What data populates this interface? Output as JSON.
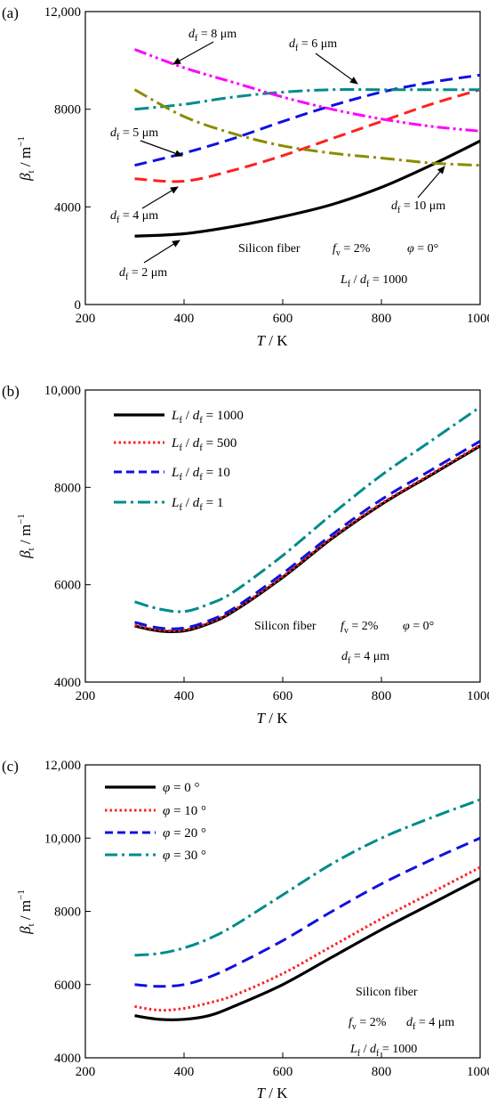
{
  "chart_data": [
    {
      "panel_label": "(a)",
      "type": "line",
      "xlabel": "T / K",
      "ylabel": "βt / m−1",
      "xlim": [
        200,
        1000
      ],
      "ylim": [
        0,
        12000
      ],
      "xticks": [
        "200",
        "400",
        "600",
        "800",
        "1000"
      ],
      "yticks": [
        "0",
        "4000",
        "8000",
        "12,000"
      ],
      "series": [
        {
          "name": "df = 2 μm",
          "color": "#000000",
          "dash": "solid",
          "x": [
            300,
            400,
            500,
            600,
            700,
            800,
            900,
            1000
          ],
          "y": [
            2800,
            2900,
            3200,
            3600,
            4100,
            4800,
            5700,
            6700
          ]
        },
        {
          "name": "df = 4 μm",
          "color": "#ff2020",
          "dash": "dash",
          "x": [
            300,
            400,
            500,
            600,
            700,
            800,
            900,
            1000
          ],
          "y": [
            5150,
            5050,
            5500,
            6100,
            6800,
            7500,
            8200,
            8800
          ]
        },
        {
          "name": "df = 5 μm",
          "color": "#1010e0",
          "dash": "dash",
          "x": [
            300,
            400,
            500,
            600,
            700,
            800,
            900,
            1000
          ],
          "y": [
            5700,
            6200,
            6800,
            7500,
            8150,
            8700,
            9100,
            9400
          ]
        },
        {
          "name": "df = 6 μm",
          "color": "#008b8b",
          "dash": "dashdot",
          "x": [
            300,
            400,
            500,
            600,
            700,
            800,
            900,
            1000
          ],
          "y": [
            8000,
            8200,
            8500,
            8700,
            8800,
            8800,
            8800,
            8800
          ]
        },
        {
          "name": "df = 8 μm",
          "color": "#ff00ff",
          "dash": "dashdotdot",
          "x": [
            300,
            400,
            500,
            600,
            700,
            800,
            900,
            1000
          ],
          "y": [
            10450,
            9700,
            9100,
            8500,
            8000,
            7600,
            7300,
            7100
          ]
        },
        {
          "name": "df = 10 μm",
          "color": "#8b8b00",
          "dash": "dashdot",
          "x": [
            300,
            400,
            500,
            600,
            700,
            800,
            900,
            1000
          ],
          "y": [
            8800,
            7700,
            7000,
            6500,
            6200,
            6000,
            5800,
            5700
          ]
        }
      ],
      "annotations": {
        "lines": [
          "Silicon fiber",
          "fv = 2%",
          "φ = 0°",
          "Lf / df = 1000"
        ]
      }
    },
    {
      "panel_label": "(b)",
      "type": "line",
      "xlabel": "T / K",
      "ylabel": "βt / m−1",
      "xlim": [
        200,
        1000
      ],
      "ylim": [
        4000,
        10000
      ],
      "xticks": [
        "200",
        "400",
        "600",
        "800",
        "1000"
      ],
      "yticks": [
        "4000",
        "6000",
        "8000",
        "10,000"
      ],
      "series": [
        {
          "name": "Lf / df = 1000",
          "color": "#000000",
          "dash": "solid",
          "x": [
            300,
            350,
            400,
            450,
            500,
            600,
            700,
            800,
            900,
            1000
          ],
          "y": [
            5150,
            5050,
            5050,
            5200,
            5450,
            6150,
            6950,
            7650,
            8250,
            8850
          ]
        },
        {
          "name": "Lf / df = 500",
          "color": "#ff2020",
          "dash": "dot",
          "x": [
            300,
            350,
            400,
            450,
            500,
            600,
            700,
            800,
            900,
            1000
          ],
          "y": [
            5170,
            5070,
            5070,
            5220,
            5470,
            6170,
            6970,
            7670,
            8270,
            8870
          ]
        },
        {
          "name": "Lf / df = 10",
          "color": "#1010e0",
          "dash": "dash",
          "x": [
            300,
            350,
            400,
            450,
            500,
            600,
            700,
            800,
            900,
            1000
          ],
          "y": [
            5230,
            5110,
            5110,
            5260,
            5510,
            6230,
            7030,
            7750,
            8350,
            8950
          ]
        },
        {
          "name": "Lf / df = 1",
          "color": "#008b8b",
          "dash": "dashdot",
          "x": [
            300,
            350,
            400,
            450,
            500,
            600,
            700,
            800,
            900,
            1000
          ],
          "y": [
            5650,
            5500,
            5450,
            5600,
            5850,
            6600,
            7450,
            8250,
            8950,
            9650
          ]
        }
      ],
      "annotations": {
        "lines": [
          "Silicon fiber",
          "fv = 2%",
          "φ = 0°",
          "df = 4 μm"
        ]
      },
      "legend_position": "top-left"
    },
    {
      "panel_label": "(c)",
      "type": "line",
      "xlabel": "T / K",
      "ylabel": "βt / m−1",
      "xlim": [
        200,
        1000
      ],
      "ylim": [
        4000,
        12000
      ],
      "xticks": [
        "200",
        "400",
        "600",
        "800",
        "1000"
      ],
      "yticks": [
        "4000",
        "6000",
        "8000",
        "10,000",
        "12,000"
      ],
      "series": [
        {
          "name": "φ = 0 °",
          "color": "#000000",
          "dash": "solid",
          "x": [
            300,
            350,
            400,
            450,
            500,
            600,
            700,
            800,
            900,
            1000
          ],
          "y": [
            5150,
            5050,
            5050,
            5150,
            5400,
            6000,
            6750,
            7500,
            8200,
            8900
          ]
        },
        {
          "name": "φ = 10 °",
          "color": "#ff2020",
          "dash": "dot",
          "x": [
            300,
            350,
            400,
            450,
            500,
            600,
            700,
            800,
            900,
            1000
          ],
          "y": [
            5400,
            5300,
            5350,
            5500,
            5700,
            6300,
            7050,
            7800,
            8500,
            9200
          ]
        },
        {
          "name": "φ = 20 °",
          "color": "#1010e0",
          "dash": "dash",
          "x": [
            300,
            350,
            400,
            450,
            500,
            600,
            700,
            800,
            900,
            1000
          ],
          "y": [
            6000,
            5950,
            6000,
            6200,
            6500,
            7200,
            8000,
            8750,
            9400,
            10000
          ]
        },
        {
          "name": "φ = 30 °",
          "color": "#008b8b",
          "dash": "dashdot",
          "x": [
            300,
            350,
            400,
            450,
            500,
            600,
            700,
            800,
            900,
            1000
          ],
          "y": [
            6800,
            6850,
            7000,
            7250,
            7600,
            8450,
            9300,
            10000,
            10550,
            11050
          ]
        }
      ],
      "annotations": {
        "lines": [
          "Silicon fiber",
          "fv = 2%",
          "df = 4 μm",
          "Lf / df = 1000"
        ]
      },
      "legend_position": "top-left"
    }
  ]
}
